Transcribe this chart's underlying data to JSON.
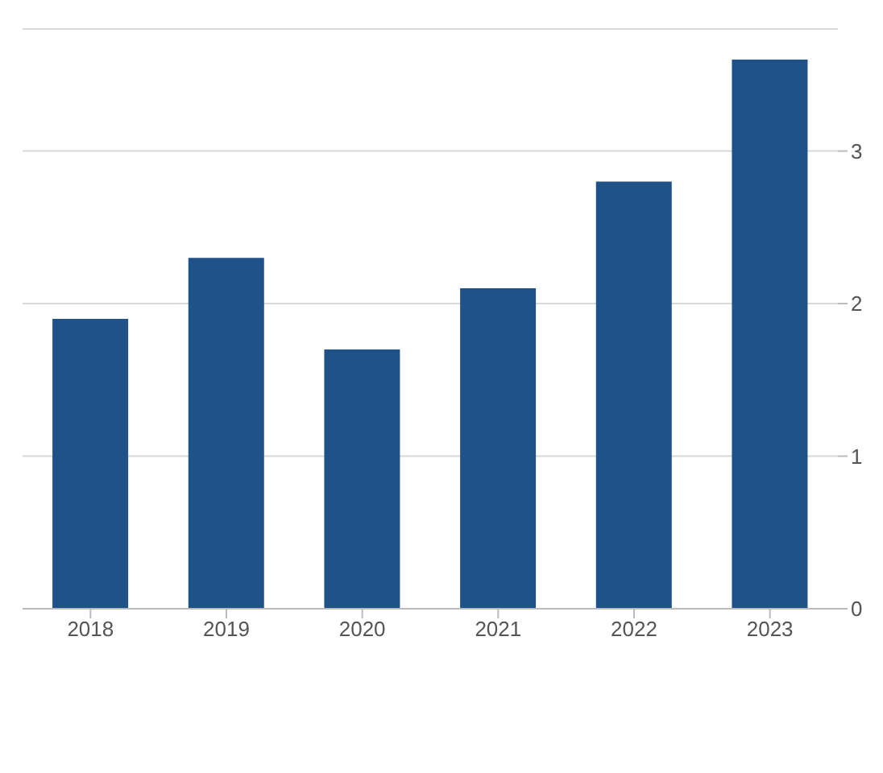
{
  "chart_data": {
    "type": "bar",
    "categories": [
      "2018",
      "2019",
      "2020",
      "2021",
      "2022",
      "2023"
    ],
    "values": [
      1.9,
      2.3,
      1.7,
      2.1,
      2.8,
      3.6
    ],
    "color": "#1f5289",
    "ylim": [
      0,
      3.8
    ],
    "yticks": [
      0,
      1,
      2,
      3
    ],
    "grid": "y",
    "legend": false
  }
}
